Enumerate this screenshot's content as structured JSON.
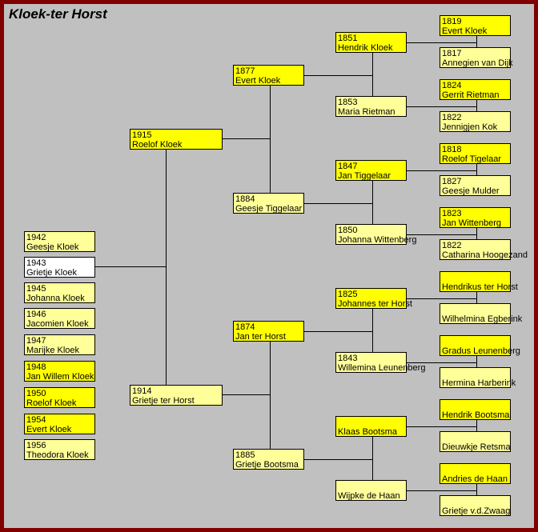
{
  "title": "Kloek-ter Horst",
  "colors": {
    "border": "#800000",
    "background": "#c0c0c0",
    "male": "#ffff00",
    "female": "#ffff99",
    "subject": "#ffffff"
  },
  "children": [
    {
      "year": "1942",
      "name": "Geesje Kloek",
      "sex": "f"
    },
    {
      "year": "1943",
      "name": "Grietje Kloek",
      "sex": "w"
    },
    {
      "year": "1945",
      "name": "Johanna Kloek",
      "sex": "f"
    },
    {
      "year": "1946",
      "name": "Jacomien Kloek",
      "sex": "f"
    },
    {
      "year": "1947",
      "name": "Marijke Kloek",
      "sex": "f"
    },
    {
      "year": "1948",
      "name": "Jan Willem Kloek",
      "sex": "m"
    },
    {
      "year": "1950",
      "name": "Roelof Kloek",
      "sex": "m"
    },
    {
      "year": "1954",
      "name": "Evert Kloek",
      "sex": "m"
    },
    {
      "year": "1956",
      "name": "Theodora Kloek",
      "sex": "f"
    }
  ],
  "parents": [
    {
      "year": "1915",
      "name": "Roelof Kloek",
      "sex": "m"
    },
    {
      "year": "1914",
      "name": "Grietje ter Horst",
      "sex": "f"
    }
  ],
  "grandparents": [
    {
      "year": "1877",
      "name": "Evert Kloek",
      "sex": "m"
    },
    {
      "year": "1884",
      "name": "Geesje Tiggelaar",
      "sex": "f"
    },
    {
      "year": "1874",
      "name": "Jan ter Horst",
      "sex": "m"
    },
    {
      "year": "1885",
      "name": "Grietje Bootsma",
      "sex": "f"
    }
  ],
  "great_grandparents": [
    {
      "year": "1851",
      "name": "Hendrik Kloek",
      "sex": "m"
    },
    {
      "year": "1853",
      "name": "Maria Rietman",
      "sex": "f"
    },
    {
      "year": "1847",
      "name": "Jan Tiggelaar",
      "sex": "m"
    },
    {
      "year": "1850",
      "name": "Johanna Wittenberg",
      "sex": "f"
    },
    {
      "year": "1825",
      "name": "Johannes ter Horst",
      "sex": "m"
    },
    {
      "year": "1843",
      "name": "Willemina Leunenberg",
      "sex": "f"
    },
    {
      "year": "",
      "name": "Klaas Bootsma",
      "sex": "m"
    },
    {
      "year": "",
      "name": "Wijpke de Haan",
      "sex": "f"
    }
  ],
  "great_great_grandparents": [
    {
      "year": "1819",
      "name": "Evert Kloek",
      "sex": "m"
    },
    {
      "year": "1817",
      "name": "Annegien van Dijk",
      "sex": "f"
    },
    {
      "year": "1824",
      "name": "Gerrit Rietman",
      "sex": "m"
    },
    {
      "year": "1822",
      "name": "Jennigjen Kok",
      "sex": "f"
    },
    {
      "year": "1818",
      "name": "Roelof Tigelaar",
      "sex": "m"
    },
    {
      "year": "1827",
      "name": "Geesje Mulder",
      "sex": "f"
    },
    {
      "year": "1823",
      "name": "Jan Wittenberg",
      "sex": "m"
    },
    {
      "year": "1822",
      "name": "Catharina Hoogezand",
      "sex": "f"
    },
    {
      "year": "",
      "name": "Hendrikus ter Horst",
      "sex": "m"
    },
    {
      "year": "",
      "name": "Wilhelmina Egberink",
      "sex": "f"
    },
    {
      "year": "",
      "name": "Gradus Leunenberg",
      "sex": "m"
    },
    {
      "year": "",
      "name": "Hermina Harberink",
      "sex": "f"
    },
    {
      "year": "",
      "name": "Hendrik Bootsma",
      "sex": "m"
    },
    {
      "year": "",
      "name": "Dieuwkje Retsma",
      "sex": "f"
    },
    {
      "year": "",
      "name": "Andries de Haan",
      "sex": "m"
    },
    {
      "year": "",
      "name": "Grietje v.d.Zwaag",
      "sex": "f"
    }
  ]
}
